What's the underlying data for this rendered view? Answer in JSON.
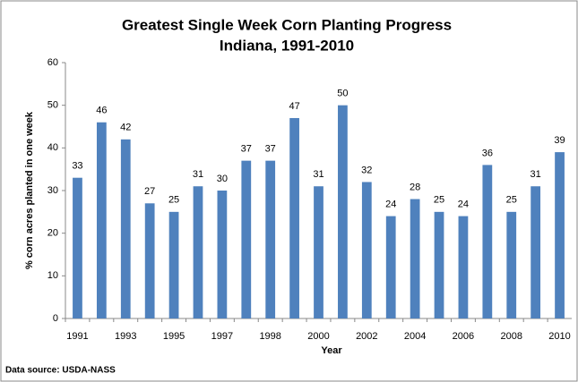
{
  "chart_data": {
    "type": "bar",
    "title": "Greatest Single Week Corn Planting Progress",
    "subtitle": "Indiana, 1991-2010",
    "x_label": "Year",
    "y_label": "% corn acres planted in one week",
    "source": "Data source: USDA-NASS",
    "categories": [
      "1991",
      null,
      "1993",
      null,
      "1995",
      null,
      "1997",
      null,
      "1998",
      null,
      "2000",
      null,
      "2002",
      null,
      "2004",
      null,
      "2006",
      null,
      "2008",
      null,
      "2010"
    ],
    "values": [
      33,
      46,
      42,
      27,
      25,
      31,
      30,
      37,
      37,
      47,
      31,
      50,
      32,
      24,
      28,
      25,
      24,
      36,
      25,
      31,
      39
    ],
    "color": "#4f81bd",
    "ylim": [
      0,
      60
    ],
    "yticks": [
      0,
      10,
      20,
      30,
      40,
      50,
      60
    ],
    "grid": false
  }
}
